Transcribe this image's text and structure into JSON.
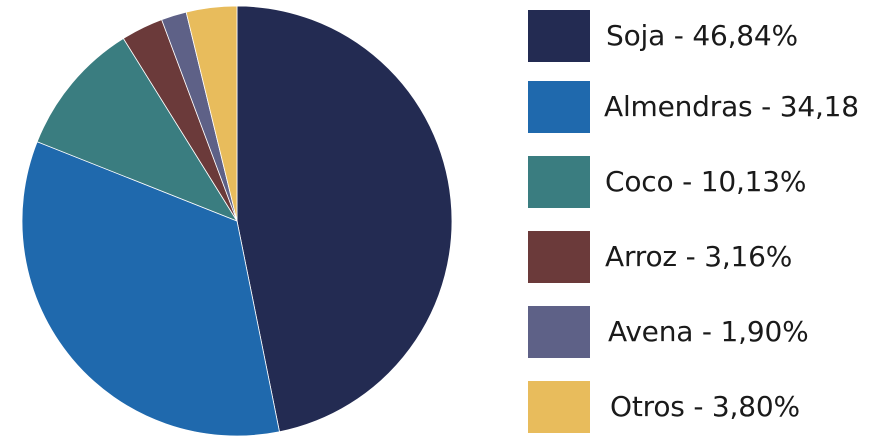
{
  "chart_data": {
    "type": "pie",
    "start_angle_deg": 0,
    "direction": "clockwise",
    "slices": [
      {
        "label": "Soja - 46,84%",
        "value": 46.84,
        "color": "#232b52"
      },
      {
        "label": "Almendras - 34,18",
        "value": 34.18,
        "color": "#1f69ad"
      },
      {
        "label": "Coco - 10,13%",
        "value": 10.13,
        "color": "#3a7d80"
      },
      {
        "label": "Arroz - 3,16%",
        "value": 3.16,
        "color": "#6b3a3a"
      },
      {
        "label": "Avena - 1,90%",
        "value": 1.9,
        "color": "#5e6187"
      },
      {
        "label": "Otros - 3,80%",
        "value": 3.8,
        "color": "#e8bc5c"
      }
    ],
    "legend_position": "right"
  }
}
